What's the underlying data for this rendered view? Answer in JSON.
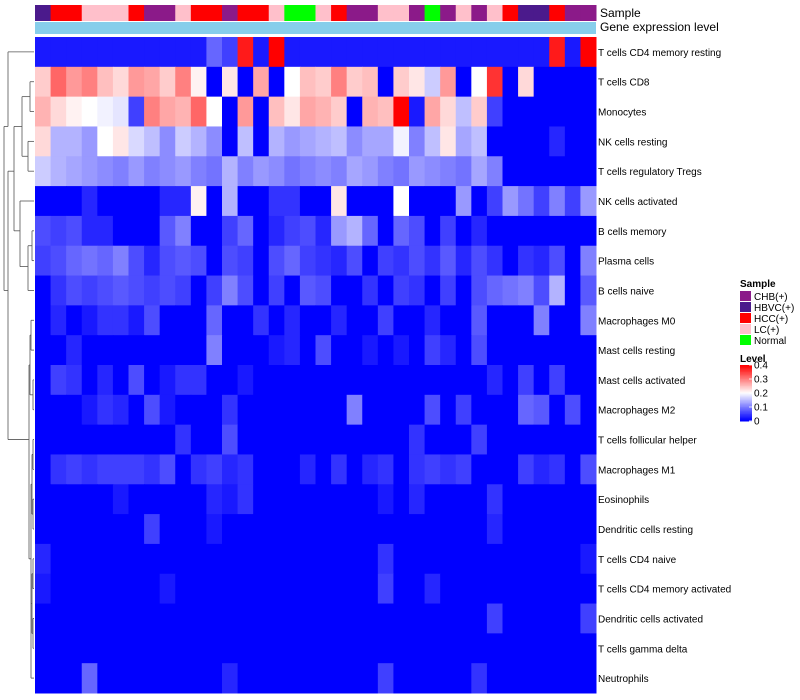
{
  "chart_data": {
    "type": "heatmap",
    "annotations": {
      "sample_title": "Sample",
      "gene_title": "Gene expression level"
    },
    "columns_sample": [
      "HBVC(+)",
      "HCC(+)",
      "HCC(+)",
      "LC(+)",
      "LC(+)",
      "LC(+)",
      "HCC(+)",
      "CHB(+)",
      "CHB(+)",
      "LC(+)",
      "HCC(+)",
      "HCC(+)",
      "CHB(+)",
      "HCC(+)",
      "HCC(+)",
      "LC(+)",
      "Normal",
      "Normal",
      "LC(+)",
      "HCC(+)",
      "CHB(+)",
      "CHB(+)",
      "LC(+)",
      "LC(+)",
      "CHB(+)",
      "Normal",
      "CHB(+)",
      "LC(+)",
      "CHB(+)",
      "LC(+)",
      "HCC(+)",
      "HBVC(+)",
      "HBVC(+)",
      "HCC(+)",
      "CHB(+)",
      "CHB(+)"
    ],
    "rows": [
      {
        "name": "T cells CD4 memory resting",
        "values": [
          0.02,
          0.02,
          0.02,
          0.02,
          0.02,
          0.02,
          0.02,
          0.02,
          0.02,
          0.02,
          0.02,
          0.08,
          0.05,
          0.38,
          0.02,
          0.4,
          0.02,
          0.02,
          0.02,
          0.02,
          0.02,
          0.02,
          0.02,
          0.02,
          0.02,
          0.02,
          0.02,
          0.02,
          0.02,
          0.02,
          0.02,
          0.02,
          0.02,
          0.38,
          0.02,
          0.4,
          0.02,
          0.02,
          0.02,
          0.02,
          0.02,
          0.38,
          0.02,
          0.02,
          0.02,
          0.02,
          0.02,
          0.02,
          0.02,
          0.02,
          0.02,
          0.02,
          0.02,
          0.02,
          0.02,
          0.02,
          0.02,
          0.02,
          0.02,
          0.02
        ]
      },
      {
        "name": "T cells CD8",
        "values": [
          0.24,
          0.32,
          0.28,
          0.3,
          0.25,
          0.23,
          0.28,
          0.27,
          0.24,
          0.3,
          0.21,
          0.0,
          0.22,
          0.0,
          0.27,
          0.0,
          0.2,
          0.25,
          0.24,
          0.3,
          0.24,
          0.25,
          0.0,
          0.24,
          0.22,
          0.16,
          0.28,
          0.0,
          0.2,
          0.36,
          0.0,
          0.23,
          0.0,
          0.0,
          0.0,
          0.0
        ]
      },
      {
        "name": "Monocytes",
        "values": [
          0.26,
          0.23,
          0.21,
          0.2,
          0.19,
          0.18,
          0.05,
          0.3,
          0.27,
          0.26,
          0.32,
          0.2,
          0.0,
          0.28,
          0.0,
          0.25,
          0.22,
          0.27,
          0.26,
          0.24,
          0.0,
          0.26,
          0.25,
          0.4,
          0.02,
          0.27,
          0.23,
          0.15,
          0.24,
          0.05,
          0.0,
          0.0,
          0.0,
          0.0,
          0.0,
          0.0
        ]
      },
      {
        "name": "NK cells resting",
        "values": [
          0.23,
          0.14,
          0.14,
          0.12,
          0.2,
          0.22,
          0.17,
          0.15,
          0.11,
          0.16,
          0.14,
          0.11,
          0.0,
          0.15,
          0.0,
          0.14,
          0.12,
          0.13,
          0.14,
          0.15,
          0.11,
          0.13,
          0.13,
          0.19,
          0.1,
          0.15,
          0.22,
          0.13,
          0.15,
          0.0,
          0.0,
          0.0,
          0.0,
          0.03,
          0.0,
          0.0
        ]
      },
      {
        "name": "T cells regulatory  Tregs",
        "values": [
          0.16,
          0.14,
          0.13,
          0.12,
          0.11,
          0.1,
          0.12,
          0.1,
          0.11,
          0.12,
          0.1,
          0.09,
          0.14,
          0.1,
          0.12,
          0.11,
          0.09,
          0.1,
          0.11,
          0.1,
          0.13,
          0.12,
          0.1,
          0.09,
          0.12,
          0.11,
          0.1,
          0.09,
          0.13,
          0.1,
          0.0,
          0.0,
          0.0,
          0.0,
          0.0,
          0.0
        ]
      },
      {
        "name": "NK cells activated",
        "values": [
          0.0,
          0.0,
          0.0,
          0.03,
          0.0,
          0.0,
          0.0,
          0.0,
          0.03,
          0.03,
          0.21,
          0.0,
          0.14,
          0.0,
          0.0,
          0.04,
          0.04,
          0.0,
          0.0,
          0.22,
          0.0,
          0.0,
          0.0,
          0.2,
          0.0,
          0.0,
          0.0,
          0.12,
          0.0,
          0.05,
          0.12,
          0.09,
          0.05,
          0.1,
          0.05,
          0.12
        ]
      },
      {
        "name": "B cells memory",
        "values": [
          0.06,
          0.05,
          0.06,
          0.03,
          0.03,
          0.0,
          0.0,
          0.0,
          0.07,
          0.1,
          0.0,
          0.0,
          0.05,
          0.08,
          0.0,
          0.03,
          0.05,
          0.06,
          0.03,
          0.12,
          0.14,
          0.08,
          0.0,
          0.08,
          0.06,
          0.0,
          0.05,
          0.0,
          0.03,
          0.0,
          0.0,
          0.0,
          0.0,
          0.0,
          0.0,
          0.0
        ]
      },
      {
        "name": "Plasma cells",
        "values": [
          0.05,
          0.06,
          0.08,
          0.09,
          0.08,
          0.1,
          0.06,
          0.03,
          0.06,
          0.07,
          0.06,
          0.0,
          0.06,
          0.05,
          0.0,
          0.06,
          0.08,
          0.05,
          0.04,
          0.03,
          0.06,
          0.0,
          0.05,
          0.04,
          0.06,
          0.04,
          0.07,
          0.03,
          0.06,
          0.04,
          0.0,
          0.04,
          0.03,
          0.06,
          0.0,
          0.1
        ]
      },
      {
        "name": "B cells naive",
        "values": [
          0.0,
          0.04,
          0.06,
          0.05,
          0.06,
          0.07,
          0.06,
          0.05,
          0.06,
          0.05,
          0.0,
          0.05,
          0.1,
          0.06,
          0.0,
          0.05,
          0.0,
          0.07,
          0.06,
          0.0,
          0.0,
          0.04,
          0.0,
          0.05,
          0.04,
          0.0,
          0.05,
          0.0,
          0.06,
          0.08,
          0.09,
          0.1,
          0.06,
          0.14,
          0.0,
          0.07
        ]
      },
      {
        "name": "Macrophages M0",
        "values": [
          0.0,
          0.03,
          0.0,
          0.02,
          0.04,
          0.04,
          0.02,
          0.06,
          0.0,
          0.0,
          0.0,
          0.08,
          0.0,
          0.0,
          0.04,
          0.0,
          0.03,
          0.0,
          0.0,
          0.03,
          0.0,
          0.0,
          0.05,
          0.0,
          0.0,
          0.03,
          0.0,
          0.0,
          0.07,
          0.0,
          0.0,
          0.0,
          0.1,
          0.0,
          0.0,
          0.1
        ]
      },
      {
        "name": "Mast cells resting",
        "values": [
          0.0,
          0.0,
          0.03,
          0.0,
          0.0,
          0.0,
          0.0,
          0.0,
          0.0,
          0.0,
          0.0,
          0.1,
          0.0,
          0.0,
          0.0,
          0.02,
          0.03,
          0.0,
          0.06,
          0.0,
          0.0,
          0.02,
          0.0,
          0.02,
          0.0,
          0.05,
          0.03,
          0.0,
          0.06,
          0.0,
          0.0,
          0.0,
          0.0,
          0.0,
          0.0,
          0.0
        ]
      },
      {
        "name": "Mast cells activated",
        "values": [
          0.0,
          0.05,
          0.04,
          0.0,
          0.03,
          0.0,
          0.06,
          0.0,
          0.02,
          0.04,
          0.04,
          0.0,
          0.0,
          0.02,
          0.0,
          0.0,
          0.0,
          0.0,
          0.0,
          0.0,
          0.0,
          0.0,
          0.0,
          0.0,
          0.0,
          0.0,
          0.0,
          0.0,
          0.0,
          0.03,
          0.0,
          0.05,
          0.0,
          0.05,
          0.0,
          0.0
        ]
      },
      {
        "name": "Macrophages M2",
        "values": [
          0.0,
          0.0,
          0.0,
          0.02,
          0.04,
          0.03,
          0.0,
          0.06,
          0.02,
          0.0,
          0.0,
          0.0,
          0.04,
          0.0,
          0.0,
          0.0,
          0.0,
          0.0,
          0.0,
          0.0,
          0.1,
          0.0,
          0.0,
          0.0,
          0.0,
          0.06,
          0.0,
          0.05,
          0.0,
          0.0,
          0.0,
          0.08,
          0.07,
          0.0,
          0.06,
          0.0
        ]
      },
      {
        "name": "T cells follicular helper",
        "values": [
          0.0,
          0.0,
          0.0,
          0.0,
          0.0,
          0.0,
          0.0,
          0.0,
          0.0,
          0.04,
          0.0,
          0.0,
          0.06,
          0.0,
          0.0,
          0.0,
          0.0,
          0.0,
          0.0,
          0.0,
          0.0,
          0.0,
          0.0,
          0.0,
          0.04,
          0.0,
          0.0,
          0.0,
          0.05,
          0.0,
          0.0,
          0.0,
          0.0,
          0.0,
          0.0,
          0.0
        ]
      },
      {
        "name": "Macrophages M1",
        "values": [
          0.0,
          0.04,
          0.05,
          0.04,
          0.05,
          0.05,
          0.05,
          0.04,
          0.06,
          0.0,
          0.04,
          0.05,
          0.03,
          0.04,
          0.0,
          0.0,
          0.0,
          0.03,
          0.0,
          0.04,
          0.0,
          0.03,
          0.04,
          0.0,
          0.04,
          0.05,
          0.04,
          0.05,
          0.0,
          0.0,
          0.0,
          0.05,
          0.03,
          0.04,
          0.0,
          0.06
        ]
      },
      {
        "name": "Eosinophils",
        "values": [
          0.0,
          0.0,
          0.0,
          0.0,
          0.0,
          0.02,
          0.0,
          0.0,
          0.0,
          0.0,
          0.0,
          0.03,
          0.02,
          0.04,
          0.0,
          0.0,
          0.0,
          0.0,
          0.0,
          0.0,
          0.0,
          0.0,
          0.02,
          0.0,
          0.03,
          0.0,
          0.0,
          0.0,
          0.0,
          0.04,
          0.0,
          0.0,
          0.0,
          0.0,
          0.0,
          0.0
        ]
      },
      {
        "name": "Dendritic cells resting",
        "values": [
          0.0,
          0.0,
          0.0,
          0.0,
          0.0,
          0.0,
          0.0,
          0.05,
          0.0,
          0.0,
          0.0,
          0.02,
          0.0,
          0.0,
          0.0,
          0.0,
          0.0,
          0.0,
          0.0,
          0.0,
          0.0,
          0.0,
          0.0,
          0.0,
          0.0,
          0.0,
          0.0,
          0.0,
          0.0,
          0.03,
          0.0,
          0.0,
          0.0,
          0.0,
          0.0,
          0.0
        ]
      },
      {
        "name": "T cells CD4 naive",
        "values": [
          0.03,
          0.0,
          0.0,
          0.0,
          0.0,
          0.0,
          0.0,
          0.0,
          0.0,
          0.0,
          0.0,
          0.0,
          0.0,
          0.0,
          0.0,
          0.0,
          0.0,
          0.0,
          0.0,
          0.0,
          0.0,
          0.0,
          0.04,
          0.0,
          0.0,
          0.0,
          0.0,
          0.0,
          0.0,
          0.0,
          0.0,
          0.0,
          0.0,
          0.0,
          0.0,
          0.02
        ]
      },
      {
        "name": "T cells CD4 memory activated",
        "values": [
          0.02,
          0.0,
          0.0,
          0.0,
          0.0,
          0.0,
          0.0,
          0.0,
          0.02,
          0.0,
          0.0,
          0.0,
          0.0,
          0.0,
          0.0,
          0.0,
          0.0,
          0.0,
          0.0,
          0.0,
          0.0,
          0.0,
          0.05,
          0.0,
          0.0,
          0.03,
          0.0,
          0.0,
          0.0,
          0.0,
          0.0,
          0.0,
          0.0,
          0.0,
          0.0,
          0.0
        ]
      },
      {
        "name": "Dendritic cells activated",
        "values": [
          0.0,
          0.0,
          0.0,
          0.0,
          0.0,
          0.0,
          0.0,
          0.0,
          0.0,
          0.0,
          0.0,
          0.0,
          0.0,
          0.0,
          0.0,
          0.0,
          0.0,
          0.0,
          0.0,
          0.0,
          0.0,
          0.0,
          0.0,
          0.0,
          0.0,
          0.0,
          0.0,
          0.0,
          0.0,
          0.05,
          0.0,
          0.0,
          0.0,
          0.0,
          0.0,
          0.05
        ]
      },
      {
        "name": "T cells gamma delta",
        "values": [
          0.0,
          0.0,
          0.0,
          0.0,
          0.0,
          0.0,
          0.0,
          0.0,
          0.0,
          0.0,
          0.0,
          0.0,
          0.0,
          0.0,
          0.0,
          0.0,
          0.0,
          0.0,
          0.0,
          0.0,
          0.0,
          0.0,
          0.0,
          0.0,
          0.0,
          0.0,
          0.0,
          0.0,
          0.0,
          0.0,
          0.0,
          0.0,
          0.0,
          0.0,
          0.0,
          0.0
        ]
      },
      {
        "name": "Neutrophils",
        "values": [
          0.0,
          0.0,
          0.0,
          0.08,
          0.0,
          0.0,
          0.0,
          0.0,
          0.0,
          0.0,
          0.0,
          0.0,
          0.03,
          0.0,
          0.0,
          0.0,
          0.0,
          0.0,
          0.0,
          0.0,
          0.0,
          0.0,
          0.05,
          0.0,
          0.0,
          0.0,
          0.0,
          0.0,
          0.04,
          0.0,
          0.0,
          0.0,
          0.0,
          0.0,
          0.0,
          0.0
        ]
      }
    ],
    "legend_sample": {
      "title": "Sample",
      "items": [
        {
          "label": "CHB(+)",
          "color": "#8B1A89"
        },
        {
          "label": "HBVC(+)",
          "color": "#4B1A8C"
        },
        {
          "label": "HCC(+)",
          "color": "#FF0000"
        },
        {
          "label": "LC(+)",
          "color": "#FFC0CB"
        },
        {
          "label": "Normal",
          "color": "#00FF00"
        }
      ]
    },
    "legend_level": {
      "title": "Level",
      "ticks": [
        "0.4",
        "0.3",
        "0.2",
        "0.1",
        "0"
      ],
      "tick_values": [
        0.4,
        0.3,
        0.2,
        0.1,
        0
      ],
      "range": [
        0,
        0.4
      ],
      "colors": {
        "low": "#0000FF",
        "mid": "#FFFFFF",
        "high": "#FF0000"
      }
    },
    "gene_bar_color": "#87CEEB"
  }
}
